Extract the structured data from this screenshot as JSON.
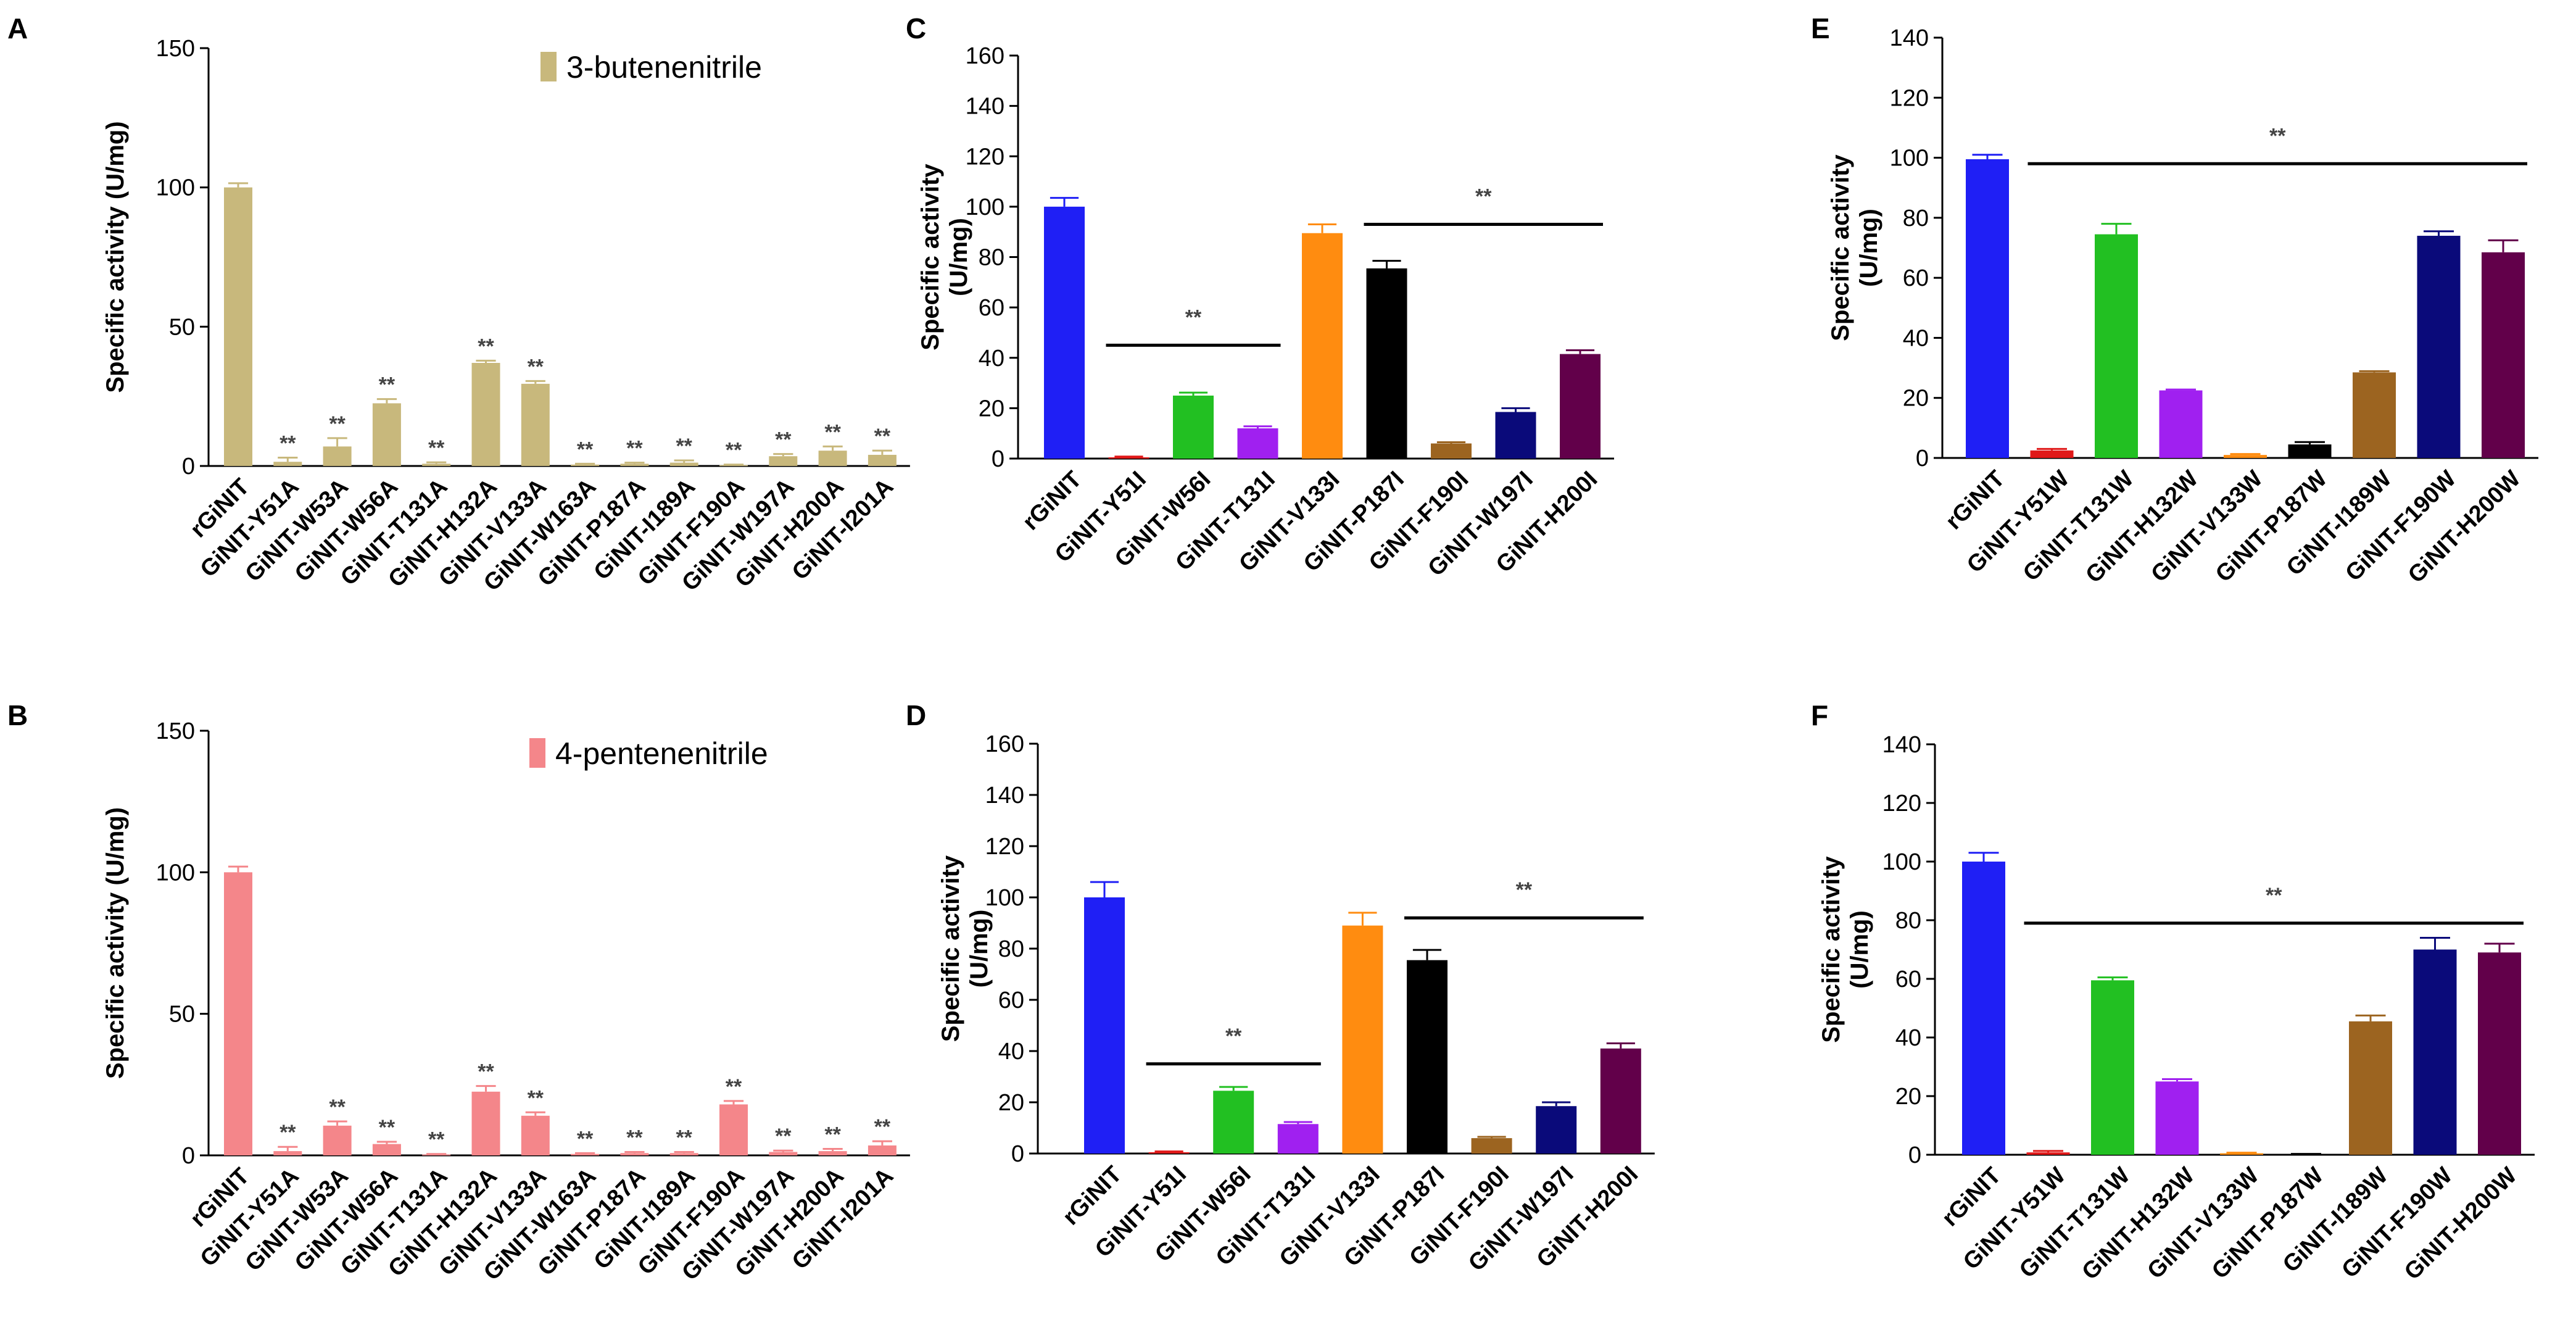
{
  "chart_data": [
    {
      "panel": "A",
      "type": "bar",
      "ylabel": "Specific activity (U/mg)",
      "ylim": [
        0,
        150
      ],
      "yticks": [
        0,
        50,
        100,
        150
      ],
      "legend": {
        "label": "3-butenenitrile",
        "color": "#C8B87C",
        "placement": "top-right"
      },
      "categories": [
        "rGiNIT",
        "GiNIT-Y51A",
        "GiNIT-W53A",
        "GiNIT-W56A",
        "GiNIT-T131A",
        "GiNIT-H132A",
        "GiNIT-V133A",
        "GiNIT-W163A",
        "GiNIT-P187A",
        "GiNIT-I189A",
        "GiNIT-F190A",
        "GiNIT-W197A",
        "GiNIT-H200A",
        "GiNIT-I201A"
      ],
      "values": [
        100,
        1.5,
        7,
        22.5,
        0.8,
        37,
        29.5,
        0.5,
        0.8,
        1.2,
        0.3,
        3.5,
        5.5,
        4
      ],
      "errors": [
        1.5,
        1.5,
        3,
        1.5,
        0.5,
        0.8,
        1,
        0.3,
        0.4,
        0.8,
        0.2,
        0.8,
        1.5,
        1.5
      ],
      "colors": [
        "#C8B87C"
      ],
      "annotations": [
        "",
        "**",
        "**",
        "**",
        "**",
        "**",
        "**",
        "**",
        "**",
        "**",
        "**",
        "**",
        "**",
        "**"
      ],
      "sig_lines": []
    },
    {
      "panel": "B",
      "type": "bar",
      "ylabel": "Specific activity (U/mg)",
      "ylim": [
        0,
        150
      ],
      "yticks": [
        0,
        50,
        100,
        150
      ],
      "legend": {
        "label": "4-pentenenitrile",
        "color": "#F4868A",
        "placement": "top-right"
      },
      "categories": [
        "rGiNIT",
        "GiNIT-Y51A",
        "GiNIT-W53A",
        "GiNIT-W56A",
        "GiNIT-T131A",
        "GiNIT-H132A",
        "GiNIT-V133A",
        "GiNIT-W163A",
        "GiNIT-P187A",
        "GiNIT-I189A",
        "GiNIT-F190A",
        "GiNIT-W197A",
        "GiNIT-H200A",
        "GiNIT-I201A"
      ],
      "values": [
        100,
        1.5,
        10.5,
        4,
        0.3,
        22.5,
        14,
        0.5,
        0.8,
        0.8,
        18,
        1.2,
        1.5,
        3.5
      ],
      "errors": [
        2,
        1.5,
        1.5,
        0.8,
        0.2,
        2,
        1.2,
        0.3,
        0.4,
        0.4,
        1.2,
        0.5,
        0.8,
        1.5
      ],
      "colors": [
        "#F4868A"
      ],
      "annotations": [
        "",
        "**",
        "**",
        "**",
        "**",
        "**",
        "**",
        "**",
        "**",
        "**",
        "**",
        "**",
        "**",
        "**"
      ],
      "sig_lines": []
    },
    {
      "panel": "C",
      "type": "bar",
      "ylabel": "Specific activity (U/mg)",
      "ylim": [
        0,
        160
      ],
      "yticks": [
        0,
        20,
        40,
        60,
        80,
        100,
        120,
        140,
        160
      ],
      "categories": [
        "rGiNIT",
        "GiNIT-Y51I",
        "GiNIT-W56I",
        "GiNIT-T131I",
        "GiNIT-V133I",
        "GiNIT-P187I",
        "GiNIT-F190I",
        "GiNIT-W197I",
        "GiNIT-H200I"
      ],
      "values": [
        100,
        0.5,
        25,
        12,
        89.5,
        75.5,
        6,
        18.5,
        41.5
      ],
      "errors": [
        3.5,
        0.3,
        1.2,
        0.8,
        3.5,
        3,
        0.5,
        1.5,
        1.5
      ],
      "colors": [
        "#1F1FF5",
        "#E01818",
        "#22C022",
        "#A020F0",
        "#FF8C10",
        "#000000",
        "#9C6420",
        "#0A0A7A",
        "#62004A"
      ],
      "annotations": [],
      "sig_lines": [
        {
          "from": 1,
          "to": 3,
          "y": 45,
          "label": "**"
        },
        {
          "from": 5,
          "to": 8,
          "y": 93,
          "label": "**"
        }
      ]
    },
    {
      "panel": "D",
      "type": "bar",
      "ylabel": "Specific activity (U/mg)",
      "ylim": [
        0,
        160
      ],
      "yticks": [
        0,
        20,
        40,
        60,
        80,
        100,
        120,
        140,
        160
      ],
      "categories": [
        "rGiNIT",
        "GiNIT-Y51I",
        "GiNIT-W56I",
        "GiNIT-T131I",
        "GiNIT-V133I",
        "GiNIT-P187I",
        "GiNIT-F190I",
        "GiNIT-W197I",
        "GiNIT-H200I"
      ],
      "values": [
        100,
        0.5,
        24.5,
        11.5,
        89,
        75.5,
        6,
        18.5,
        41
      ],
      "errors": [
        6,
        0.3,
        1.5,
        0.8,
        5,
        4,
        0.5,
        1.5,
        2
      ],
      "colors": [
        "#1F1FF5",
        "#E01818",
        "#22C022",
        "#A020F0",
        "#FF8C10",
        "#000000",
        "#9C6420",
        "#0A0A7A",
        "#62004A"
      ],
      "annotations": [],
      "sig_lines": [
        {
          "from": 1,
          "to": 3,
          "y": 35,
          "label": "**"
        },
        {
          "from": 5,
          "to": 8,
          "y": 92,
          "label": "**"
        }
      ]
    },
    {
      "panel": "E",
      "type": "bar",
      "ylabel": "Specific activity (U/mg)",
      "ylim": [
        0,
        140
      ],
      "yticks": [
        0,
        20,
        40,
        60,
        80,
        100,
        120,
        140
      ],
      "categories": [
        "rGiNIT",
        "GiNIT-Y51W",
        "GiNIT-T131W",
        "GiNIT-H132W",
        "GiNIT-V133W",
        "GiNIT-P187W",
        "GiNIT-I189W",
        "GiNIT-F190W",
        "GiNIT-H200W"
      ],
      "values": [
        99.5,
        2.5,
        74.5,
        22.5,
        1,
        4.5,
        28.5,
        74,
        68.5
      ],
      "errors": [
        1.5,
        0.5,
        3.5,
        0.3,
        0.3,
        0.8,
        0.4,
        1.5,
        4
      ],
      "colors": [
        "#1F1FF5",
        "#E01818",
        "#22C022",
        "#A020F0",
        "#FF8C10",
        "#000000",
        "#9C6420",
        "#0A0A7A",
        "#62004A"
      ],
      "annotations": [],
      "sig_lines": [
        {
          "from": 1,
          "to": 8,
          "y": 98,
          "label": "**"
        }
      ]
    },
    {
      "panel": "F",
      "type": "bar",
      "ylabel": "Specific activity (U/mg)",
      "ylim": [
        0,
        140
      ],
      "yticks": [
        0,
        20,
        40,
        60,
        80,
        100,
        120,
        140
      ],
      "categories": [
        "rGiNIT",
        "GiNIT-Y51W",
        "GiNIT-T131W",
        "GiNIT-H132W",
        "GiNIT-V133W",
        "GiNIT-P187W",
        "GiNIT-I189W",
        "GiNIT-F190W",
        "GiNIT-H200W"
      ],
      "values": [
        100,
        0.8,
        59.5,
        25,
        0.5,
        0.2,
        45.5,
        70,
        69
      ],
      "errors": [
        3,
        0.5,
        1,
        0.8,
        0.2,
        0.1,
        2,
        4,
        3
      ],
      "colors": [
        "#1F1FF5",
        "#E01818",
        "#22C022",
        "#A020F0",
        "#FF8C10",
        "#000000",
        "#9C6420",
        "#0A0A7A",
        "#62004A"
      ],
      "annotations": [],
      "sig_lines": [
        {
          "from": 1,
          "to": 8,
          "y": 79,
          "label": "**"
        }
      ]
    }
  ]
}
